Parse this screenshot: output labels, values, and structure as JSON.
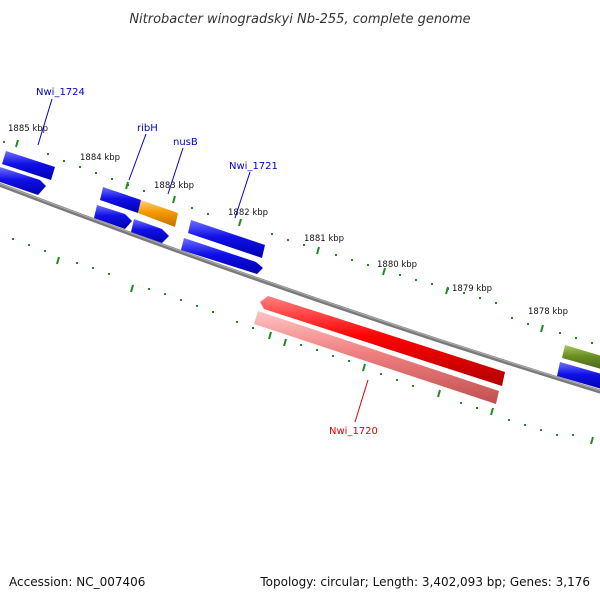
{
  "title": "Nitrobacter winogradskyi Nb-255, complete genome",
  "footer": {
    "accession": "Accession: NC_007406",
    "summary": "Topology: circular; Length: 3,402,093 bp; Genes: 3,176"
  },
  "colors": {
    "backbone": "#7a7a7a",
    "tick": "#1f8a1f",
    "gene_blue": "#1010e8",
    "gene_orange": "#f59a00",
    "gene_red": "#ff0000",
    "gene_pink": "#f08080",
    "gene_olive": "#6b8e23",
    "label_blue": "#0000cc",
    "label_red": "#dd0000"
  },
  "kbp_labels": [
    {
      "id": "1885",
      "text": "1885 kbp"
    },
    {
      "id": "1884",
      "text": "1884 kbp"
    },
    {
      "id": "1883",
      "text": "1883 kbp"
    },
    {
      "id": "1882",
      "text": "1882 kbp"
    },
    {
      "id": "1881",
      "text": "1881 kbp"
    },
    {
      "id": "1880",
      "text": "1880 kbp"
    },
    {
      "id": "1879",
      "text": "1879 kbp"
    },
    {
      "id": "1878",
      "text": "1878 kbp"
    }
  ],
  "gene_labels": [
    {
      "id": "nwi1724",
      "text": "Nwi_1724",
      "color": "#0000cc"
    },
    {
      "id": "ribh",
      "text": "ribH",
      "color": "#0000cc"
    },
    {
      "id": "nusb",
      "text": "nusB",
      "color": "#0000cc"
    },
    {
      "id": "nwi1721",
      "text": "Nwi_1721",
      "color": "#0000cc"
    },
    {
      "id": "nwi1720",
      "text": "Nwi_1720",
      "color": "#dd0000"
    }
  ]
}
